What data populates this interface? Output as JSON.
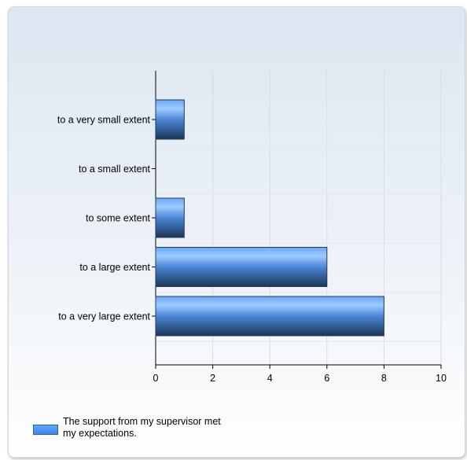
{
  "chart_data": {
    "type": "bar",
    "orientation": "horizontal",
    "categories": [
      "to a very small extent",
      "to a small extent",
      "to some extent",
      "to a large extent",
      "to a very large extent"
    ],
    "series": [
      {
        "name": "The support from my supervisor met my expectations.",
        "values": [
          1,
          0,
          1,
          6,
          8
        ]
      }
    ],
    "xlim": [
      0,
      10
    ],
    "xticks": [
      0,
      2,
      4,
      6,
      8,
      10
    ],
    "grid": true,
    "legend_position": "bottom-left",
    "colors": {
      "bar_top": "#8fc1ff",
      "bar_mid": "#4b8ee6",
      "bar_bottom": "#1d3c66"
    }
  },
  "legend": {
    "label": "The support from my supervisor met my expectations."
  }
}
